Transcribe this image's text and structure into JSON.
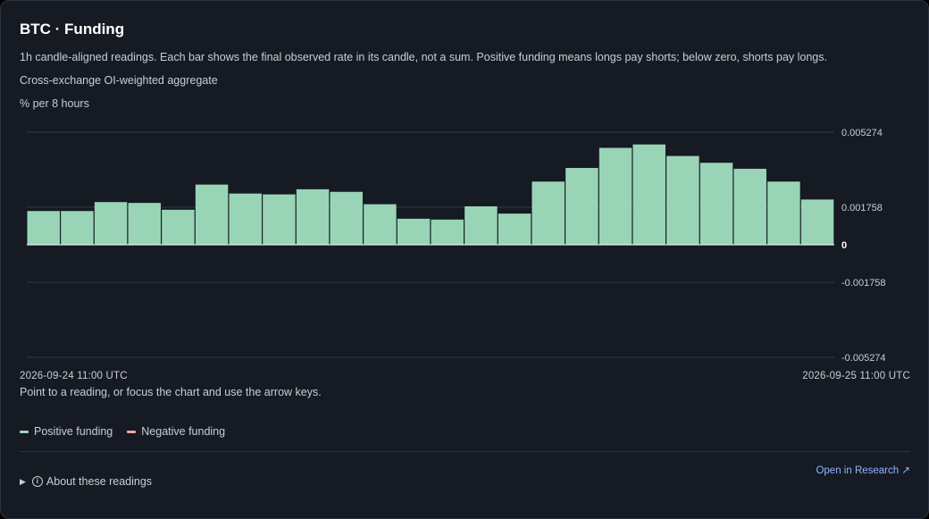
{
  "header": {
    "title": "BTC · Funding",
    "description": "1h candle-aligned readings. Each bar shows the final observed rate in its candle, not a sum. Positive funding means longs pay shorts; below zero, shorts pay longs.",
    "source": "Cross-exchange OI-weighted aggregate",
    "unit": "% per 8 hours"
  },
  "chart_data": {
    "type": "bar",
    "title": "BTC · Funding",
    "ylabel": "% per 8 hours",
    "ylim": [
      -0.005274,
      0.005274
    ],
    "y_ticks": [
      "0.005274",
      "0.001758",
      "0",
      "-0.001758",
      "-0.005274"
    ],
    "y_tick_values": [
      0.005274,
      0.001758,
      0,
      -0.001758,
      -0.005274
    ],
    "x_start": "2026-09-24 11:00 UTC",
    "x_end": "2026-09-25 11:00 UTC",
    "grid": true,
    "legend_position": "bottom-left",
    "colors": {
      "positive": "#9ad4b7",
      "negative": "#f0a5a5",
      "zero_line": "#e6e9ee",
      "grid": "#323945"
    },
    "values": [
      0.00158,
      0.00158,
      0.002,
      0.00196,
      0.00164,
      0.00282,
      0.0024,
      0.00236,
      0.0026,
      0.00248,
      0.0019,
      0.00122,
      0.00118,
      0.0018,
      0.00146,
      0.00296,
      0.0036,
      0.00454,
      0.0047,
      0.00416,
      0.00384,
      0.00356,
      0.00296,
      0.00212
    ]
  },
  "hint": "Point to a reading, or focus the chart and use the arrow keys.",
  "legend": {
    "positive": "Positive funding",
    "negative": "Negative funding"
  },
  "footer": {
    "about": "About these readings",
    "research": "Open in Research ↗"
  }
}
